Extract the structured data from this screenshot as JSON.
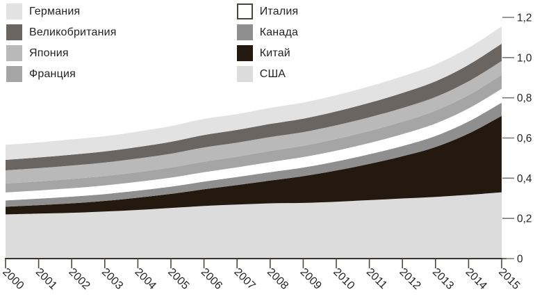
{
  "figure": {
    "background": "#ffffff",
    "axis_color": "#38322e",
    "tick_color": "#4c4742",
    "ytick_color": "#7b7775",
    "text_color": "#231f20"
  },
  "legend": {
    "items": [
      {
        "id": "germany",
        "label": "Германия",
        "color": "#e2e2e2"
      },
      {
        "id": "uk",
        "label": "Великобритания",
        "color": "#6a6561"
      },
      {
        "id": "japan",
        "label": "Япония",
        "color": "#b9b9b9"
      },
      {
        "id": "france",
        "label": "Франция",
        "color": "#a5a5a5"
      },
      {
        "id": "italy",
        "label": "Италия",
        "color": "#ffffff",
        "border": "#4a4541"
      },
      {
        "id": "canada",
        "label": "Канада",
        "color": "#8f8f8f"
      },
      {
        "id": "china",
        "label": "Китай",
        "color": "#23190e"
      },
      {
        "id": "usa",
        "label": "США",
        "color": "#dcdcdc"
      }
    ]
  },
  "chart_data": {
    "type": "area",
    "stacked": true,
    "title": "",
    "xlabel": "",
    "ylabel": "",
    "grid": false,
    "legend_position": "top-left",
    "yaxis_side": "right",
    "ylim": [
      0,
      1.2
    ],
    "ytick_values": [
      0,
      0.2,
      0.4,
      0.6,
      0.8,
      1.0,
      1.2
    ],
    "ytick_labels": [
      "0",
      "0,2",
      "0,4",
      "0,6",
      "0,8",
      "1,0",
      "1,2"
    ],
    "x": [
      2000,
      2001,
      2002,
      2003,
      2004,
      2005,
      2006,
      2007,
      2008,
      2009,
      2010,
      2011,
      2012,
      2013,
      2014,
      2015
    ],
    "series": [
      {
        "id": "usa",
        "name": "США",
        "color": "#dcdcdc",
        "values": [
          0.22,
          0.224,
          0.228,
          0.234,
          0.242,
          0.252,
          0.262,
          0.269,
          0.275,
          0.277,
          0.283,
          0.291,
          0.299,
          0.307,
          0.317,
          0.33
        ]
      },
      {
        "id": "china",
        "name": "Китай",
        "color": "#23190e",
        "values": [
          0.038,
          0.042,
          0.047,
          0.053,
          0.061,
          0.07,
          0.083,
          0.097,
          0.113,
          0.133,
          0.155,
          0.18,
          0.21,
          0.248,
          0.305,
          0.38
        ]
      },
      {
        "id": "canada",
        "name": "Канада",
        "color": "#8f8f8f",
        "values": [
          0.031,
          0.032,
          0.033,
          0.034,
          0.035,
          0.036,
          0.038,
          0.04,
          0.042,
          0.043,
          0.045,
          0.048,
          0.051,
          0.055,
          0.06,
          0.066
        ]
      },
      {
        "id": "italy",
        "name": "Италия",
        "color": "#ffffff",
        "values": [
          0.04,
          0.041,
          0.042,
          0.043,
          0.044,
          0.045,
          0.047,
          0.048,
          0.05,
          0.052,
          0.054,
          0.056,
          0.059,
          0.062,
          0.065,
          0.069
        ]
      },
      {
        "id": "france",
        "name": "Франция",
        "color": "#a5a5a5",
        "values": [
          0.044,
          0.045,
          0.046,
          0.047,
          0.048,
          0.05,
          0.052,
          0.053,
          0.055,
          0.056,
          0.058,
          0.06,
          0.062,
          0.064,
          0.066,
          0.069
        ]
      },
      {
        "id": "japan",
        "name": "Япония",
        "color": "#b9b9b9",
        "values": [
          0.066,
          0.066,
          0.067,
          0.067,
          0.068,
          0.069,
          0.071,
          0.07,
          0.07,
          0.068,
          0.068,
          0.068,
          0.068,
          0.068,
          0.069,
          0.069
        ]
      },
      {
        "id": "uk",
        "name": "Великобритания",
        "color": "#6a6561",
        "values": [
          0.052,
          0.053,
          0.054,
          0.055,
          0.057,
          0.059,
          0.062,
          0.063,
          0.065,
          0.067,
          0.069,
          0.072,
          0.075,
          0.078,
          0.082,
          0.086
        ]
      },
      {
        "id": "germany",
        "name": "Германия",
        "color": "#e2e2e2",
        "values": [
          0.075,
          0.075,
          0.076,
          0.076,
          0.077,
          0.078,
          0.08,
          0.079,
          0.08,
          0.08,
          0.081,
          0.082,
          0.083,
          0.084,
          0.085,
          0.086
        ]
      }
    ]
  }
}
